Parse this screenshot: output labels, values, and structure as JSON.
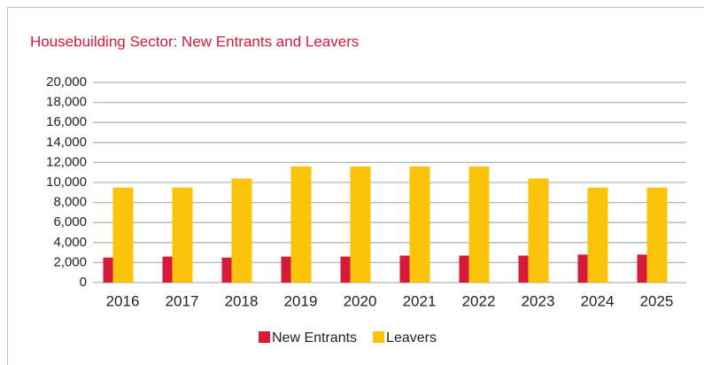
{
  "chart_data": {
    "type": "bar",
    "title": "Housebuilding Sector: New Entrants and Leavers",
    "categories": [
      "2016",
      "2017",
      "2018",
      "2019",
      "2020",
      "2021",
      "2022",
      "2023",
      "2024",
      "2025"
    ],
    "series": [
      {
        "name": "New Entrants",
        "color": "#d7193a",
        "values": [
          2500,
          2600,
          2500,
          2600,
          2600,
          2700,
          2700,
          2700,
          2800,
          2800
        ]
      },
      {
        "name": "Leavers",
        "color": "#fcc30b",
        "values": [
          9500,
          9500,
          10400,
          11600,
          11600,
          11600,
          11600,
          10400,
          9500,
          9500
        ]
      }
    ],
    "ylim": [
      0,
      20000
    ],
    "yticks": [
      0,
      {
        "value": 2000,
        "label": "2,000"
      },
      {
        "value": 4000,
        "label": "4,000"
      },
      {
        "value": 6000,
        "label": "6,000"
      },
      {
        "value": 8000,
        "label": "8,000"
      },
      {
        "value": 10000,
        "label": "10,000"
      },
      {
        "value": 12000,
        "label": "12,000"
      },
      {
        "value": 14000,
        "label": "14,000"
      },
      {
        "value": 16000,
        "label": "16,000"
      },
      {
        "value": 18000,
        "label": "18,000"
      },
      {
        "value": 20000,
        "label": "20,000"
      }
    ],
    "grid": true,
    "legend": "bottom"
  }
}
